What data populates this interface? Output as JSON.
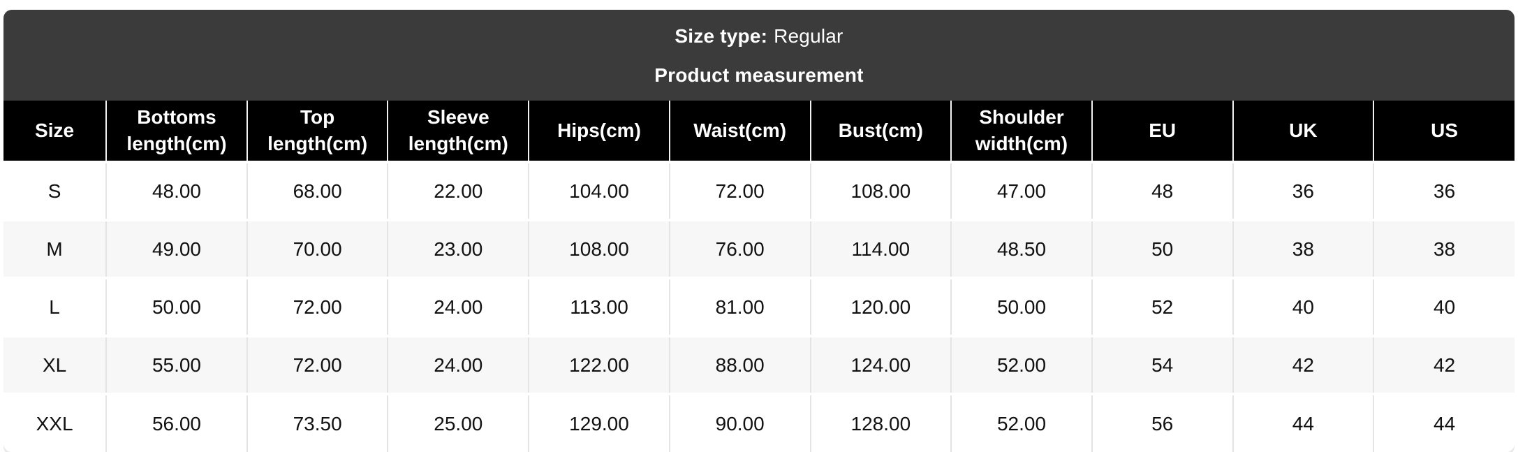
{
  "header": {
    "size_type_label": "Size type:",
    "size_type_value": "Regular",
    "subtitle": "Product measurement"
  },
  "table": {
    "columns": [
      "Size",
      "Bottoms length(cm)",
      "Top length(cm)",
      "Sleeve length(cm)",
      "Hips(cm)",
      "Waist(cm)",
      "Bust(cm)",
      "Shoulder width(cm)",
      "EU",
      "UK",
      "US"
    ],
    "rows": [
      [
        "S",
        "48.00",
        "68.00",
        "22.00",
        "104.00",
        "72.00",
        "108.00",
        "47.00",
        "48",
        "36",
        "36"
      ],
      [
        "M",
        "49.00",
        "70.00",
        "23.00",
        "108.00",
        "76.00",
        "114.00",
        "48.50",
        "50",
        "38",
        "38"
      ],
      [
        "L",
        "50.00",
        "72.00",
        "24.00",
        "113.00",
        "81.00",
        "120.00",
        "50.00",
        "52",
        "40",
        "40"
      ],
      [
        "XL",
        "55.00",
        "72.00",
        "24.00",
        "122.00",
        "88.00",
        "124.00",
        "52.00",
        "54",
        "42",
        "42"
      ],
      [
        "XXL",
        "56.00",
        "73.50",
        "25.00",
        "129.00",
        "90.00",
        "128.00",
        "52.00",
        "56",
        "44",
        "44"
      ]
    ]
  },
  "colors": {
    "header_bar_bg": "#3b3b3b",
    "table_header_bg": "#000000",
    "stripe_bg": "#f7f7f7",
    "divider": "#e4e4e4",
    "text_on_dark": "#ffffff",
    "text_on_light": "#111111"
  }
}
